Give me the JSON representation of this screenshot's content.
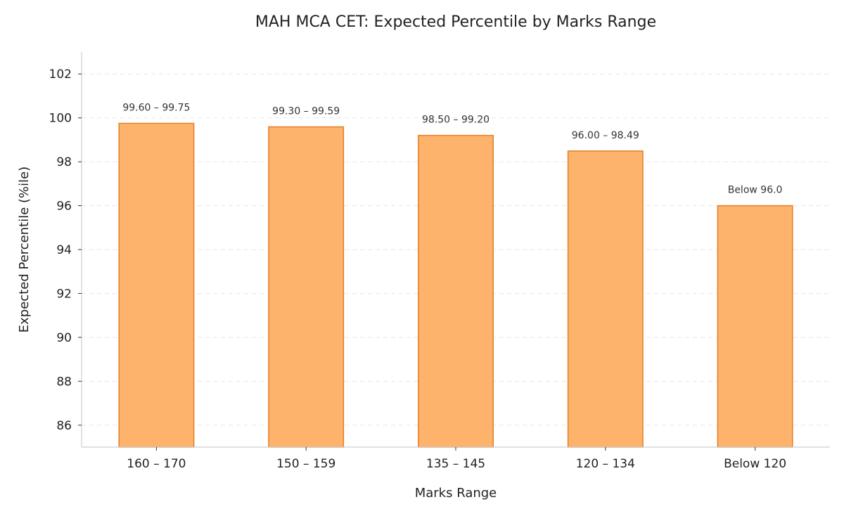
{
  "chart_data": {
    "type": "bar",
    "title": "MAH MCA CET: Expected Percentile by Marks Range",
    "xlabel": "Marks Range",
    "ylabel": "Expected Percentile (%ile)",
    "categories": [
      "160 – 170",
      "150 – 159",
      "135 – 145",
      "120 – 134",
      "Below 120"
    ],
    "values": [
      99.75,
      99.59,
      99.2,
      98.49,
      96.0
    ],
    "data_labels": [
      "99.60 – 99.75",
      "99.30 – 99.59",
      "98.50 – 99.20",
      "96.00 – 98.49",
      "Below 96.0"
    ],
    "ylim": [
      85,
      103
    ],
    "yticks": [
      86,
      88,
      90,
      92,
      94,
      96,
      98,
      100,
      102
    ],
    "grid": true,
    "bar_fill": "#fdb36b",
    "bar_edge": "#e57e25"
  }
}
